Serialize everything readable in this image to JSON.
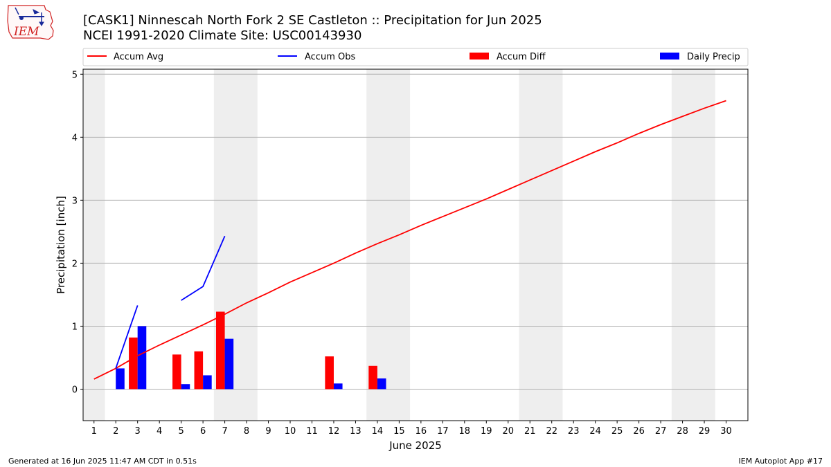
{
  "chart_data": {
    "type": "bar",
    "title": "[CASK1] Ninnescah North Fork 2 SE Castleton :: Precipitation for Jun 2025",
    "subtitle": "NCEI 1991-2020 Climate Site: USC00143930",
    "xlabel": "June 2025",
    "ylabel": "Precipitation [inch]",
    "ylim": [
      -0.5,
      5.08
    ],
    "xlim": [
      0.5,
      31
    ],
    "yticks": [
      0,
      1,
      2,
      3,
      4,
      5
    ],
    "days": [
      1,
      2,
      3,
      4,
      5,
      6,
      7,
      8,
      9,
      10,
      11,
      12,
      13,
      14,
      15,
      16,
      17,
      18,
      19,
      20,
      21,
      22,
      23,
      24,
      25,
      26,
      27,
      28,
      29,
      30
    ],
    "weekend_bands": [
      [
        0.5,
        1.5
      ],
      [
        6.5,
        8.5
      ],
      [
        13.5,
        15.5
      ],
      [
        20.5,
        22.5
      ],
      [
        27.5,
        29.5
      ]
    ],
    "grid": "horizontal",
    "legend_position": "top",
    "series": [
      {
        "name": "Accum Avg",
        "kind": "line",
        "color": "#ff0000",
        "x": [
          1,
          2,
          3,
          4,
          5,
          6,
          7,
          8,
          9,
          10,
          11,
          12,
          13,
          14,
          15,
          16,
          17,
          18,
          19,
          20,
          21,
          22,
          23,
          24,
          25,
          26,
          27,
          28,
          29,
          30
        ],
        "values": [
          0.16,
          0.33,
          0.53,
          0.7,
          0.86,
          1.02,
          1.19,
          1.37,
          1.53,
          1.7,
          1.85,
          2.0,
          2.16,
          2.31,
          2.45,
          2.6,
          2.74,
          2.88,
          3.02,
          3.17,
          3.32,
          3.47,
          3.62,
          3.77,
          3.91,
          4.06,
          4.2,
          4.33,
          4.46,
          4.58
        ]
      },
      {
        "name": "Accum Obs",
        "kind": "line",
        "color": "#0000ff",
        "segments": [
          {
            "x": [
              2,
              3
            ],
            "values": [
              0.33,
              1.33
            ]
          },
          {
            "x": [
              5,
              6,
              7
            ],
            "values": [
              1.41,
              1.63,
              2.43
            ]
          }
        ]
      },
      {
        "name": "Accum Diff",
        "kind": "bar",
        "color": "#ff0000",
        "x": [
          3,
          5,
          6,
          7,
          12,
          14
        ],
        "values": [
          0.82,
          0.55,
          0.6,
          1.23,
          0.52,
          0.37
        ]
      },
      {
        "name": "Daily Precip",
        "kind": "bar",
        "color": "#0000ff",
        "x": [
          2,
          3,
          5,
          6,
          7,
          12,
          14
        ],
        "values": [
          0.33,
          1.0,
          0.08,
          0.22,
          0.8,
          0.09,
          0.17
        ]
      }
    ]
  },
  "footer": {
    "generated": "Generated at 16 Jun 2025 11:47 AM CDT in 0.51s",
    "app": "IEM Autoplot App #17"
  },
  "logo": {
    "text": "IEM",
    "icon": "weather-station-icon"
  }
}
